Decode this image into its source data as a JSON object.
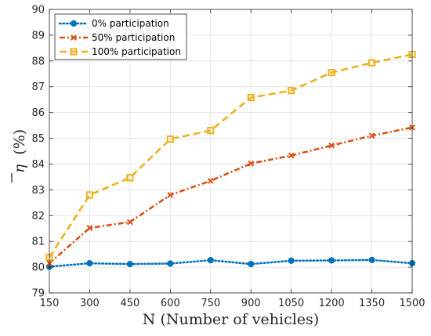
{
  "chart_data": {
    "type": "line",
    "title": "",
    "xlabel": "N (Number of vehicles)",
    "ylabel": "(%)",
    "ylabel_symbol": "η",
    "x": [
      150,
      300,
      450,
      600,
      750,
      900,
      1050,
      1200,
      1350,
      1500
    ],
    "x_tick_labels": [
      "150",
      "300",
      "450",
      "600",
      "750",
      "900",
      "1050",
      "1200",
      "1350",
      "1500"
    ],
    "y_tick_labels": [
      "79",
      "80",
      "81",
      "82",
      "83",
      "84",
      "85",
      "86",
      "87",
      "88",
      "89",
      "90"
    ],
    "xlim": [
      150,
      1500
    ],
    "ylim": [
      79,
      90
    ],
    "grid": true,
    "legend_position": "top-left",
    "series": [
      {
        "name": "0% participation",
        "color": "#0072BD",
        "marker": "circle",
        "line_style": "dotted",
        "values": [
          80.02,
          80.15,
          80.12,
          80.14,
          80.27,
          80.12,
          80.25,
          80.26,
          80.28,
          80.15
        ]
      },
      {
        "name": "50% participation",
        "color": "#D95319",
        "marker": "x",
        "line_style": "dash-dot",
        "values": [
          80.15,
          81.52,
          81.75,
          82.8,
          83.35,
          84.02,
          84.33,
          84.72,
          85.1,
          85.42
        ]
      },
      {
        "name": "100% participation",
        "color": "#EDB120",
        "marker": "square",
        "line_style": "dashed",
        "values": [
          80.38,
          82.8,
          83.47,
          84.97,
          85.3,
          86.58,
          86.85,
          87.55,
          87.93,
          88.25
        ]
      }
    ]
  }
}
